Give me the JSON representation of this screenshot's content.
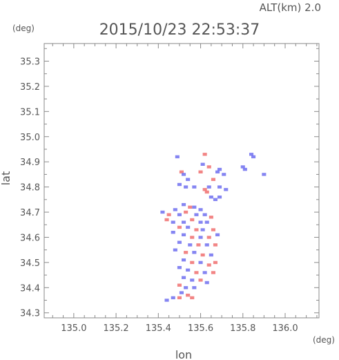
{
  "header": {
    "altitude_label": "ALT(km) 2.0",
    "timestamp": "2015/10/23 22:53:37"
  },
  "chart_data": {
    "type": "heatmap",
    "title": "2015/10/23 22:53:37",
    "xlabel": "lon",
    "ylabel": "lat",
    "x_unit": "(deg)",
    "y_unit": "(deg)",
    "xlim": [
      134.86,
      136.16
    ],
    "ylim": [
      34.28,
      35.37
    ],
    "x_ticks": [
      "135.0",
      "135.2",
      "135.4",
      "135.6",
      "135.8",
      "136.0"
    ],
    "y_ticks": [
      "34.3",
      "34.4",
      "34.5",
      "34.6",
      "34.7",
      "34.8",
      "34.9",
      "35.0",
      "35.1",
      "35.2",
      "35.3"
    ],
    "grid": false,
    "colors": {
      "positive": "#f07070",
      "negative": "#7070f0",
      "frame": "#888888"
    },
    "cells_note": "sign: 1 = red (positive), -1 = blue (negative)",
    "cells": [
      {
        "lon": 135.62,
        "lat": 34.93,
        "sign": 1
      },
      {
        "lon": 135.49,
        "lat": 34.92,
        "sign": -1
      },
      {
        "lon": 135.84,
        "lat": 34.93,
        "sign": -1
      },
      {
        "lon": 135.85,
        "lat": 34.92,
        "sign": -1
      },
      {
        "lon": 135.61,
        "lat": 34.89,
        "sign": -1
      },
      {
        "lon": 135.64,
        "lat": 34.88,
        "sign": 1
      },
      {
        "lon": 135.8,
        "lat": 34.88,
        "sign": -1
      },
      {
        "lon": 135.81,
        "lat": 34.87,
        "sign": -1
      },
      {
        "lon": 135.69,
        "lat": 34.87,
        "sign": -1
      },
      {
        "lon": 135.68,
        "lat": 34.86,
        "sign": -1
      },
      {
        "lon": 135.51,
        "lat": 34.86,
        "sign": 1
      },
      {
        "lon": 135.52,
        "lat": 34.85,
        "sign": -1
      },
      {
        "lon": 135.6,
        "lat": 34.86,
        "sign": 1
      },
      {
        "lon": 135.71,
        "lat": 34.85,
        "sign": -1
      },
      {
        "lon": 135.9,
        "lat": 34.85,
        "sign": -1
      },
      {
        "lon": 135.54,
        "lat": 34.83,
        "sign": -1
      },
      {
        "lon": 135.66,
        "lat": 34.83,
        "sign": 1
      },
      {
        "lon": 135.5,
        "lat": 34.81,
        "sign": -1
      },
      {
        "lon": 135.53,
        "lat": 34.8,
        "sign": -1
      },
      {
        "lon": 135.57,
        "lat": 34.8,
        "sign": -1
      },
      {
        "lon": 135.64,
        "lat": 34.8,
        "sign": -1
      },
      {
        "lon": 135.69,
        "lat": 34.8,
        "sign": -1
      },
      {
        "lon": 135.62,
        "lat": 34.79,
        "sign": 1
      },
      {
        "lon": 135.63,
        "lat": 34.78,
        "sign": 1
      },
      {
        "lon": 135.72,
        "lat": 34.79,
        "sign": -1
      },
      {
        "lon": 135.65,
        "lat": 34.76,
        "sign": -1
      },
      {
        "lon": 135.69,
        "lat": 34.76,
        "sign": -1
      },
      {
        "lon": 135.67,
        "lat": 34.75,
        "sign": -1
      },
      {
        "lon": 135.52,
        "lat": 34.73,
        "sign": -1
      },
      {
        "lon": 135.55,
        "lat": 34.72,
        "sign": 1
      },
      {
        "lon": 135.57,
        "lat": 34.72,
        "sign": -1
      },
      {
        "lon": 135.6,
        "lat": 34.71,
        "sign": -1
      },
      {
        "lon": 135.48,
        "lat": 34.71,
        "sign": -1
      },
      {
        "lon": 135.42,
        "lat": 34.7,
        "sign": -1
      },
      {
        "lon": 135.45,
        "lat": 34.69,
        "sign": 1
      },
      {
        "lon": 135.5,
        "lat": 34.69,
        "sign": -1
      },
      {
        "lon": 135.53,
        "lat": 34.7,
        "sign": 1
      },
      {
        "lon": 135.58,
        "lat": 34.69,
        "sign": -1
      },
      {
        "lon": 135.62,
        "lat": 34.69,
        "sign": -1
      },
      {
        "lon": 135.65,
        "lat": 34.68,
        "sign": 1
      },
      {
        "lon": 135.44,
        "lat": 34.67,
        "sign": 1
      },
      {
        "lon": 135.47,
        "lat": 34.66,
        "sign": -1
      },
      {
        "lon": 135.52,
        "lat": 34.66,
        "sign": -1
      },
      {
        "lon": 135.56,
        "lat": 34.67,
        "sign": 1
      },
      {
        "lon": 135.6,
        "lat": 34.66,
        "sign": -1
      },
      {
        "lon": 135.63,
        "lat": 34.66,
        "sign": -1
      },
      {
        "lon": 135.5,
        "lat": 34.64,
        "sign": 1
      },
      {
        "lon": 135.54,
        "lat": 34.64,
        "sign": -1
      },
      {
        "lon": 135.58,
        "lat": 34.63,
        "sign": 1
      },
      {
        "lon": 135.61,
        "lat": 34.63,
        "sign": -1
      },
      {
        "lon": 135.66,
        "lat": 34.63,
        "sign": 1
      },
      {
        "lon": 135.47,
        "lat": 34.62,
        "sign": -1
      },
      {
        "lon": 135.52,
        "lat": 34.61,
        "sign": -1
      },
      {
        "lon": 135.56,
        "lat": 34.6,
        "sign": 1
      },
      {
        "lon": 135.6,
        "lat": 34.6,
        "sign": -1
      },
      {
        "lon": 135.64,
        "lat": 34.6,
        "sign": 1
      },
      {
        "lon": 135.68,
        "lat": 34.61,
        "sign": -1
      },
      {
        "lon": 135.5,
        "lat": 34.58,
        "sign": -1
      },
      {
        "lon": 135.55,
        "lat": 34.57,
        "sign": -1
      },
      {
        "lon": 135.59,
        "lat": 34.57,
        "sign": 1
      },
      {
        "lon": 135.63,
        "lat": 34.57,
        "sign": -1
      },
      {
        "lon": 135.67,
        "lat": 34.57,
        "sign": 1
      },
      {
        "lon": 135.48,
        "lat": 34.55,
        "sign": -1
      },
      {
        "lon": 135.53,
        "lat": 34.54,
        "sign": 1
      },
      {
        "lon": 135.57,
        "lat": 34.54,
        "sign": -1
      },
      {
        "lon": 135.61,
        "lat": 34.53,
        "sign": 1
      },
      {
        "lon": 135.65,
        "lat": 34.53,
        "sign": -1
      },
      {
        "lon": 135.52,
        "lat": 34.51,
        "sign": -1
      },
      {
        "lon": 135.56,
        "lat": 34.5,
        "sign": 1
      },
      {
        "lon": 135.6,
        "lat": 34.5,
        "sign": -1
      },
      {
        "lon": 135.64,
        "lat": 34.49,
        "sign": 1
      },
      {
        "lon": 135.67,
        "lat": 34.5,
        "sign": 1
      },
      {
        "lon": 135.5,
        "lat": 34.48,
        "sign": -1
      },
      {
        "lon": 135.54,
        "lat": 34.47,
        "sign": -1
      },
      {
        "lon": 135.58,
        "lat": 34.46,
        "sign": 1
      },
      {
        "lon": 135.62,
        "lat": 34.46,
        "sign": -1
      },
      {
        "lon": 135.66,
        "lat": 34.46,
        "sign": 1
      },
      {
        "lon": 135.52,
        "lat": 34.44,
        "sign": -1
      },
      {
        "lon": 135.56,
        "lat": 34.43,
        "sign": -1
      },
      {
        "lon": 135.6,
        "lat": 34.43,
        "sign": 1
      },
      {
        "lon": 135.63,
        "lat": 34.42,
        "sign": -1
      },
      {
        "lon": 135.5,
        "lat": 34.41,
        "sign": 1
      },
      {
        "lon": 135.53,
        "lat": 34.4,
        "sign": -1
      },
      {
        "lon": 135.57,
        "lat": 34.4,
        "sign": -1
      },
      {
        "lon": 135.51,
        "lat": 34.38,
        "sign": -1
      },
      {
        "lon": 135.54,
        "lat": 34.37,
        "sign": 1
      },
      {
        "lon": 135.47,
        "lat": 34.36,
        "sign": -1
      },
      {
        "lon": 135.5,
        "lat": 34.36,
        "sign": 1
      },
      {
        "lon": 135.44,
        "lat": 34.35,
        "sign": -1
      },
      {
        "lon": 135.56,
        "lat": 34.36,
        "sign": 1
      }
    ]
  }
}
